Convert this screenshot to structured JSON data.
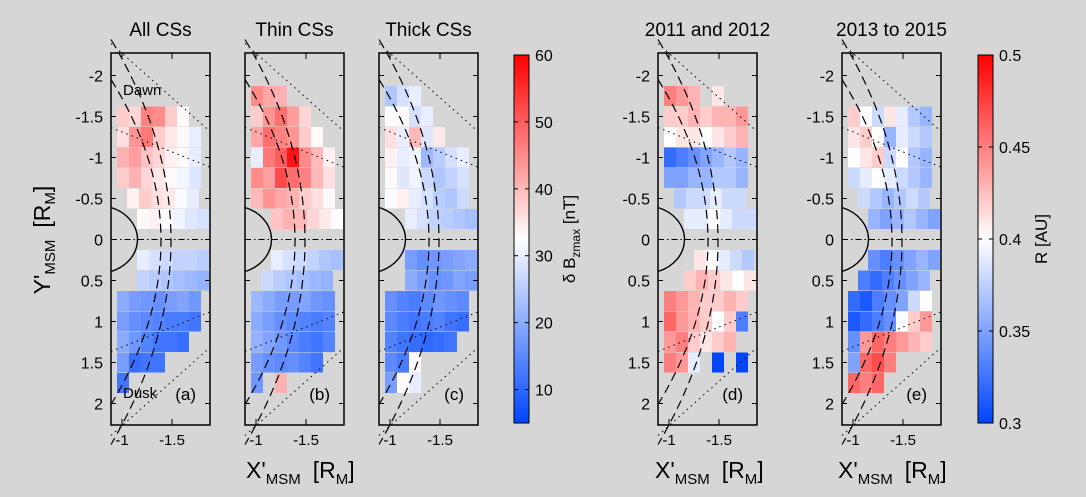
{
  "figure": {
    "y_axis": {
      "label": "Y'",
      "sub": "MSM",
      "unit_open": "[R",
      "unit_sub": "M",
      "unit_close": "]",
      "ticks": [
        "-2",
        "-1.5",
        "-1",
        "-0.5",
        "0",
        "0.5",
        "1",
        "1.5",
        "2"
      ]
    },
    "x_axis": {
      "label": "X'",
      "sub": "MSM",
      "unit_open": "[R",
      "unit_sub": "M",
      "unit_close": "]",
      "ticks": [
        "-1",
        "-1.5"
      ]
    },
    "annotations": {
      "dawn": "Dawn",
      "dusk": "Dusk"
    }
  },
  "colorbars": [
    {
      "label_main": "δ B",
      "label_sub": "zmax",
      "label_unit": " [nT]",
      "ticks": [
        "10",
        "20",
        "30",
        "40",
        "50",
        "60"
      ],
      "range": [
        5,
        60
      ]
    },
    {
      "label_main": "R [AU]",
      "ticks": [
        "0.3",
        "0.35",
        "0.4",
        "0.45",
        "0.5"
      ],
      "range": [
        0.3,
        0.5
      ]
    }
  ],
  "chart_data": [
    {
      "type": "heatmap",
      "title": "All CSs",
      "panel_label": "(a)",
      "quantity": "δBzmax [nT]",
      "xlim": [
        -0.9,
        -1.95
      ],
      "ylim": [
        -2.2,
        2.2
      ],
      "ref_lines": [
        "y=0",
        "x=-1.5"
      ],
      "rows": [
        {
          "y": -1.5,
          "x_start": -1.0,
          "values": [
            38,
            37,
            46,
            45,
            38,
            33
          ]
        },
        {
          "y": -1.25,
          "x_start": -1.0,
          "values": [
            36,
            44,
            47,
            38,
            35,
            33,
            30,
            26
          ]
        },
        {
          "y": -1.0,
          "x_start": -1.0,
          "values": [
            41,
            43,
            39,
            37,
            34,
            33,
            30,
            32
          ]
        },
        {
          "y": -0.75,
          "x_start": -1.0,
          "values": [
            38,
            41,
            37,
            35,
            33,
            31,
            29,
            28
          ]
        },
        {
          "y": -0.5,
          "x_start": -1.1,
          "values": [
            34,
            38,
            36,
            35,
            32,
            30,
            27,
            26
          ]
        },
        {
          "y": -0.25,
          "x_start": -1.2,
          "values": [
            33,
            34,
            32,
            31,
            29,
            28,
            26
          ]
        },
        {
          "y": 0.25,
          "x_start": -1.2,
          "values": [
            30,
            28,
            27,
            26,
            26,
            25,
            23
          ]
        },
        {
          "y": 0.5,
          "x_start": -1.2,
          "values": [
            26,
            25,
            24,
            23,
            22,
            21,
            20
          ]
        },
        {
          "y": 0.75,
          "x_start": -1.0,
          "values": [
            20,
            18,
            17,
            16,
            18,
            19,
            17,
            16
          ]
        },
        {
          "y": 1.0,
          "x_start": -1.0,
          "values": [
            18,
            16,
            15,
            14,
            13,
            13,
            12,
            14
          ]
        },
        {
          "y": 1.25,
          "x_start": -1.0,
          "values": [
            20,
            17,
            14,
            12,
            12,
            11
          ]
        },
        {
          "y": 1.5,
          "x_start": -1.0,
          "values": [
            18,
            11,
            12,
            12
          ]
        },
        {
          "y": 1.75,
          "x_start": -1.0,
          "values": [
            12
          ]
        }
      ]
    },
    {
      "type": "heatmap",
      "title": "Thin CSs",
      "panel_label": "(b)",
      "quantity": "δBzmax [nT]",
      "xlim": [
        -0.9,
        -1.95
      ],
      "ylim": [
        -2.2,
        2.2
      ],
      "ref_lines": [
        "y=0",
        "x=-1.5"
      ],
      "rows": [
        {
          "y": -1.75,
          "x_start": -1.0,
          "values": [
            45,
            42,
            41
          ]
        },
        {
          "y": -1.5,
          "x_start": -1.0,
          "values": [
            38,
            44,
            48,
            43,
            37
          ]
        },
        {
          "y": -1.25,
          "x_start": -1.0,
          "values": [
            42,
            48,
            46,
            44,
            38,
            33
          ]
        },
        {
          "y": -1.0,
          "x_start": -1.0,
          "values": [
            30,
            47,
            50,
            58,
            45,
            40,
            34
          ]
        },
        {
          "y": -0.75,
          "x_start": -1.0,
          "values": [
            45,
            43,
            52,
            48,
            46,
            40,
            36
          ]
        },
        {
          "y": -0.5,
          "x_start": -1.0,
          "values": [
            40,
            44,
            42,
            41,
            38,
            36,
            33
          ]
        },
        {
          "y": -0.25,
          "x_start": -1.2,
          "values": [
            39,
            41,
            40,
            37,
            35,
            32
          ]
        },
        {
          "y": 0.25,
          "x_start": -1.2,
          "values": [
            30,
            28,
            27,
            26,
            24,
            23
          ]
        },
        {
          "y": 0.5,
          "x_start": -1.1,
          "values": [
            27,
            25,
            24,
            23,
            22,
            21,
            20
          ]
        },
        {
          "y": 0.75,
          "x_start": -1.0,
          "values": [
            22,
            20,
            18,
            18,
            19,
            17,
            16
          ]
        },
        {
          "y": 1.0,
          "x_start": -1.0,
          "values": [
            20,
            18,
            16,
            15,
            14,
            13,
            14,
            15
          ]
        },
        {
          "y": 1.25,
          "x_start": -1.0,
          "values": [
            21,
            19,
            17,
            15,
            13,
            12,
            14
          ]
        },
        {
          "y": 1.5,
          "x_start": -1.0,
          "values": [
            18,
            16,
            15,
            16,
            14,
            12
          ]
        },
        {
          "y": 1.75,
          "x_start": -1.0,
          "values": [
            17,
            null,
            41
          ]
        }
      ]
    },
    {
      "type": "heatmap",
      "title": "Thick CSs",
      "panel_label": "(c)",
      "quantity": "δBzmax [nT]",
      "xlim": [
        -0.9,
        -1.95
      ],
      "ylim": [
        -2.2,
        2.2
      ],
      "ref_lines": [
        "y=0",
        "x=-1.5"
      ],
      "rows": [
        {
          "y": -1.75,
          "x_start": -1.0,
          "values": [
            24,
            28,
            30
          ]
        },
        {
          "y": -1.5,
          "x_start": -1.0,
          "values": [
            32,
            33,
            28,
            30
          ]
        },
        {
          "y": -1.25,
          "x_start": -1.0,
          "values": [
            36,
            30,
            40,
            29,
            35
          ]
        },
        {
          "y": -1.0,
          "x_start": -1.0,
          "values": [
            34,
            30,
            31,
            22,
            25,
            28,
            30
          ]
        },
        {
          "y": -0.75,
          "x_start": -1.0,
          "values": [
            33,
            29,
            31,
            27,
            24,
            26,
            28
          ]
        },
        {
          "y": -0.5,
          "x_start": -1.0,
          "values": [
            32,
            34,
            30,
            28,
            25,
            24,
            27,
            28
          ]
        },
        {
          "y": -0.25,
          "x_start": -1.2,
          "values": [
            30,
            28,
            26,
            25,
            24,
            23,
            24
          ]
        },
        {
          "y": 0.25,
          "x_start": -1.2,
          "values": [
            18,
            16,
            17,
            18,
            19,
            20
          ]
        },
        {
          "y": 0.5,
          "x_start": -1.2,
          "values": [
            20,
            18,
            16,
            17,
            19,
            18,
            20
          ]
        },
        {
          "y": 0.75,
          "x_start": -1.0,
          "values": [
            16,
            14,
            13,
            15,
            17,
            16,
            15,
            14
          ]
        },
        {
          "y": 1.0,
          "x_start": -1.0,
          "values": [
            15,
            13,
            12,
            13,
            14,
            12,
            11,
            13
          ]
        },
        {
          "y": 1.25,
          "x_start": -1.0,
          "values": [
            14,
            12,
            11,
            10,
            11,
            12
          ]
        },
        {
          "y": 1.5,
          "x_start": -1.0,
          "values": [
            15,
            13,
            33
          ]
        },
        {
          "y": 1.75,
          "x_start": -1.0,
          "values": [
            18,
            33,
            30
          ]
        }
      ]
    },
    {
      "type": "heatmap",
      "title": "2011 and 2012",
      "panel_label": "(d)",
      "quantity": "R [AU]",
      "xlim": [
        -0.9,
        -1.95
      ],
      "ylim": [
        -2.2,
        2.2
      ],
      "ref_lines": [
        "y=0",
        "x=-1.5"
      ],
      "rows": [
        {
          "y": -1.75,
          "x_start": -1.0,
          "values": [
            0.45,
            0.44,
            0.43,
            null,
            0.41
          ]
        },
        {
          "y": -1.5,
          "x_start": -1.0,
          "values": [
            0.42,
            0.42,
            0.43,
            0.42,
            0.43,
            0.43,
            0.44
          ]
        },
        {
          "y": -1.25,
          "x_start": -1.0,
          "values": [
            0.4,
            0.41,
            0.41,
            0.4,
            0.41,
            0.42,
            0.43
          ]
        },
        {
          "y": -1.0,
          "x_start": -1.0,
          "values": [
            0.32,
            0.33,
            0.34,
            0.35,
            0.36,
            0.37,
            0.36,
            0.37,
            0.38
          ]
        },
        {
          "y": -0.75,
          "x_start": -1.0,
          "values": [
            0.35,
            0.35,
            0.36,
            0.36,
            0.37,
            0.37,
            0.36,
            0.37
          ]
        },
        {
          "y": -0.5,
          "x_start": -1.1,
          "values": [
            0.37,
            0.38,
            0.38,
            0.39,
            0.38,
            0.38,
            0.38
          ]
        },
        {
          "y": -0.25,
          "x_start": -1.2,
          "values": [
            0.39,
            0.39,
            0.4,
            0.39,
            0.38,
            0.38
          ]
        },
        {
          "y": 0.25,
          "x_start": -1.3,
          "values": [
            0.41,
            0.4,
            0.39,
            0.38,
            0.37,
            0.37
          ]
        },
        {
          "y": 0.5,
          "x_start": -1.2,
          "values": [
            0.42,
            0.43,
            0.42,
            0.41,
            0.4,
            0.41
          ]
        },
        {
          "y": 0.75,
          "x_start": -1.0,
          "values": [
            0.45,
            0.44,
            0.43,
            0.42,
            0.42,
            0.43,
            0.42,
            0.41,
            0.42
          ]
        },
        {
          "y": 1.0,
          "x_start": -1.0,
          "values": [
            0.46,
            0.44,
            0.43,
            0.42,
            0.4,
            0.42,
            0.33,
            0.34
          ]
        },
        {
          "y": 1.25,
          "x_start": -1.0,
          "values": [
            0.44,
            0.45,
            0.42,
            0.41,
            0.42,
            0.43,
            null,
            0.35
          ]
        },
        {
          "y": 1.5,
          "x_start": -1.0,
          "values": [
            0.45,
            0.44,
            0.39,
            null,
            0.3,
            null,
            0.3
          ]
        }
      ]
    },
    {
      "type": "heatmap",
      "title": "2013 to 2015",
      "panel_label": "(e)",
      "quantity": "R [AU]",
      "xlim": [
        -0.9,
        -1.95
      ],
      "ylim": [
        -2.2,
        2.2
      ],
      "ref_lines": [
        "y=0",
        "x=-1.5"
      ],
      "rows": [
        {
          "y": -1.5,
          "x_start": -1.0,
          "values": [
            0.42,
            0.4,
            0.38,
            0.41,
            0.39,
            0.37,
            0.36,
            0.33
          ]
        },
        {
          "y": -1.25,
          "x_start": -1.0,
          "values": [
            0.41,
            0.42,
            0.4,
            0.36,
            0.39,
            0.38,
            0.37,
            0.36,
            0.35
          ]
        },
        {
          "y": -1.0,
          "x_start": -1.0,
          "values": [
            0.4,
            0.41,
            0.42,
            0.38,
            0.4,
            0.37,
            0.36,
            0.35,
            0.36
          ]
        },
        {
          "y": -0.75,
          "x_start": -1.0,
          "values": [
            0.38,
            0.39,
            0.4,
            0.39,
            0.38,
            0.37,
            0.36,
            0.37
          ]
        },
        {
          "y": -0.5,
          "x_start": -1.1,
          "values": [
            0.38,
            0.37,
            0.36,
            0.37,
            0.38,
            0.37,
            0.36
          ]
        },
        {
          "y": -0.25,
          "x_start": -1.2,
          "values": [
            0.36,
            0.35,
            0.36,
            0.37,
            0.36,
            0.35
          ]
        },
        {
          "y": 0.25,
          "x_start": -1.2,
          "values": [
            0.34,
            0.33,
            0.34,
            0.35,
            0.36,
            0.35
          ]
        },
        {
          "y": 0.5,
          "x_start": -1.1,
          "values": [
            0.33,
            0.32,
            0.33,
            0.34,
            0.35,
            0.36,
            0.37
          ]
        },
        {
          "y": 0.75,
          "x_start": -1.0,
          "values": [
            0.32,
            0.31,
            0.33,
            0.34,
            0.35,
            0.38,
            0.4,
            0.43
          ]
        },
        {
          "y": 1.0,
          "x_start": -1.0,
          "values": [
            0.31,
            0.32,
            0.33,
            0.34,
            0.4,
            0.42,
            0.44,
            0.45,
            0.43
          ]
        },
        {
          "y": 1.25,
          "x_start": -1.0,
          "values": [
            0.34,
            0.44,
            0.46,
            0.45,
            0.44,
            0.43,
            0.42
          ]
        },
        {
          "y": 1.5,
          "x_start": -1.0,
          "values": [
            0.35,
            0.46,
            0.47,
            0.45
          ]
        },
        {
          "y": 1.75,
          "x_start": -1.0,
          "values": [
            0.46,
            0.45,
            0.46
          ]
        }
      ]
    }
  ]
}
